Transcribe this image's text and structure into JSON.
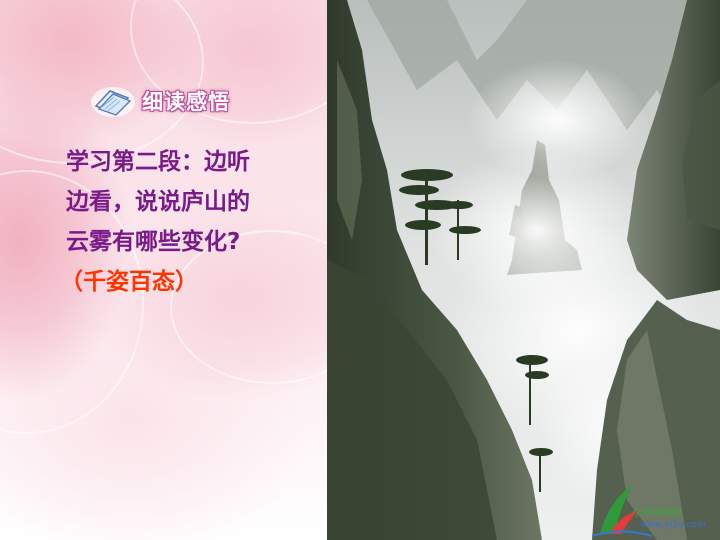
{
  "heading": {
    "label": "细读感悟",
    "icon": "book-icon",
    "accent": "#c04a9a"
  },
  "question": {
    "lines": [
      "学习第二段：边听",
      "边看，说说庐山的",
      "云雾有哪些变化?"
    ],
    "color": "#7a1a8a"
  },
  "answer": {
    "open": "（",
    "text": "千姿百态",
    "close": "）",
    "color": "#ff3300"
  },
  "photo": {
    "subject": "mountain-cloud-photo"
  },
  "watermark": {
    "name": "小学资源网",
    "url": "www.xj5u.com"
  }
}
